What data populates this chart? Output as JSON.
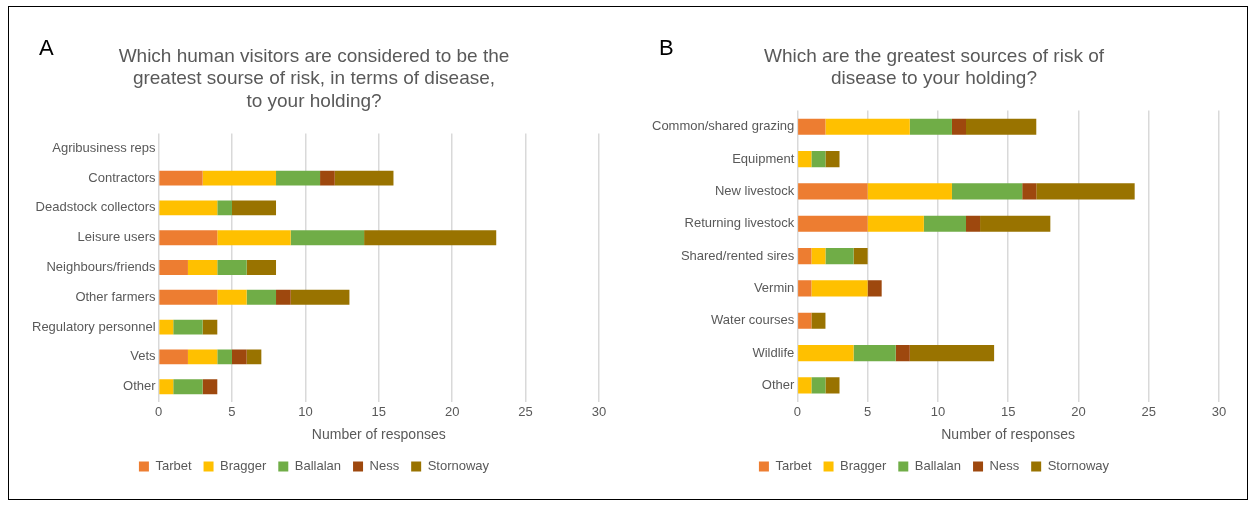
{
  "chart_data": [
    {
      "type": "bar",
      "orientation": "horizontal",
      "stacked": true,
      "title": "Which human visitors are considered to be the greatest sourse of risk, in terms of disease, to your holding?",
      "xlabel": "Number of responses",
      "annotations": [
        "A"
      ],
      "categories": [
        "Agribusiness reps",
        "Contractors",
        "Deadstock collectors",
        "Leisure users",
        "Neighbours/friends",
        "Other farmers",
        "Regulatory personnel",
        "Vets",
        "Other"
      ],
      "series": [
        {
          "name": "Tarbet",
          "color": "#ed7d31",
          "values": [
            0,
            3,
            0,
            4,
            2,
            4,
            0,
            2,
            0
          ]
        },
        {
          "name": "Bragger",
          "color": "#ffc000",
          "values": [
            0,
            5,
            4,
            5,
            2,
            2,
            1,
            2,
            1
          ]
        },
        {
          "name": "Ballalan",
          "color": "#70ad47",
          "values": [
            0,
            3,
            1,
            5,
            2,
            2,
            2,
            1,
            2
          ]
        },
        {
          "name": "Ness",
          "color": "#9e480e",
          "values": [
            0,
            1,
            0,
            0,
            0,
            1,
            0,
            1,
            1
          ]
        },
        {
          "name": "Stornoway",
          "color": "#997300",
          "values": [
            0,
            4,
            3,
            9,
            2,
            4,
            1,
            1,
            0
          ]
        }
      ],
      "xlim": [
        0,
        30
      ],
      "xticks": [
        0,
        5,
        10,
        15,
        20,
        25,
        30
      ],
      "grid": "x",
      "legend": "bottom"
    },
    {
      "type": "bar",
      "orientation": "horizontal",
      "stacked": true,
      "title": "Which are the greatest sources of risk of disease to your holding?",
      "xlabel": "Number of responses",
      "annotations": [
        "B"
      ],
      "categories": [
        "Common/shared grazing",
        "Equipment",
        "New livestock",
        "Returning livestock",
        "Shared/rented sires",
        "Vermin",
        "Water courses",
        "Wildlife",
        "Other"
      ],
      "series": [
        {
          "name": "Tarbet",
          "color": "#ed7d31",
          "values": [
            2,
            0,
            5,
            5,
            1,
            1,
            1,
            0,
            0
          ]
        },
        {
          "name": "Bragger",
          "color": "#ffc000",
          "values": [
            6,
            1,
            6,
            4,
            1,
            4,
            0,
            4,
            1
          ]
        },
        {
          "name": "Ballalan",
          "color": "#70ad47",
          "values": [
            3,
            1,
            5,
            3,
            2,
            0,
            0,
            3,
            1
          ]
        },
        {
          "name": "Ness",
          "color": "#9e480e",
          "values": [
            1,
            0,
            1,
            1,
            0,
            1,
            0,
            1,
            0
          ]
        },
        {
          "name": "Stornoway",
          "color": "#997300",
          "values": [
            5,
            1,
            7,
            5,
            1,
            0,
            1,
            6,
            1
          ]
        }
      ],
      "xlim": [
        0,
        30
      ],
      "xticks": [
        0,
        5,
        10,
        15,
        20,
        25,
        30
      ],
      "grid": "x",
      "legend": "bottom"
    }
  ]
}
